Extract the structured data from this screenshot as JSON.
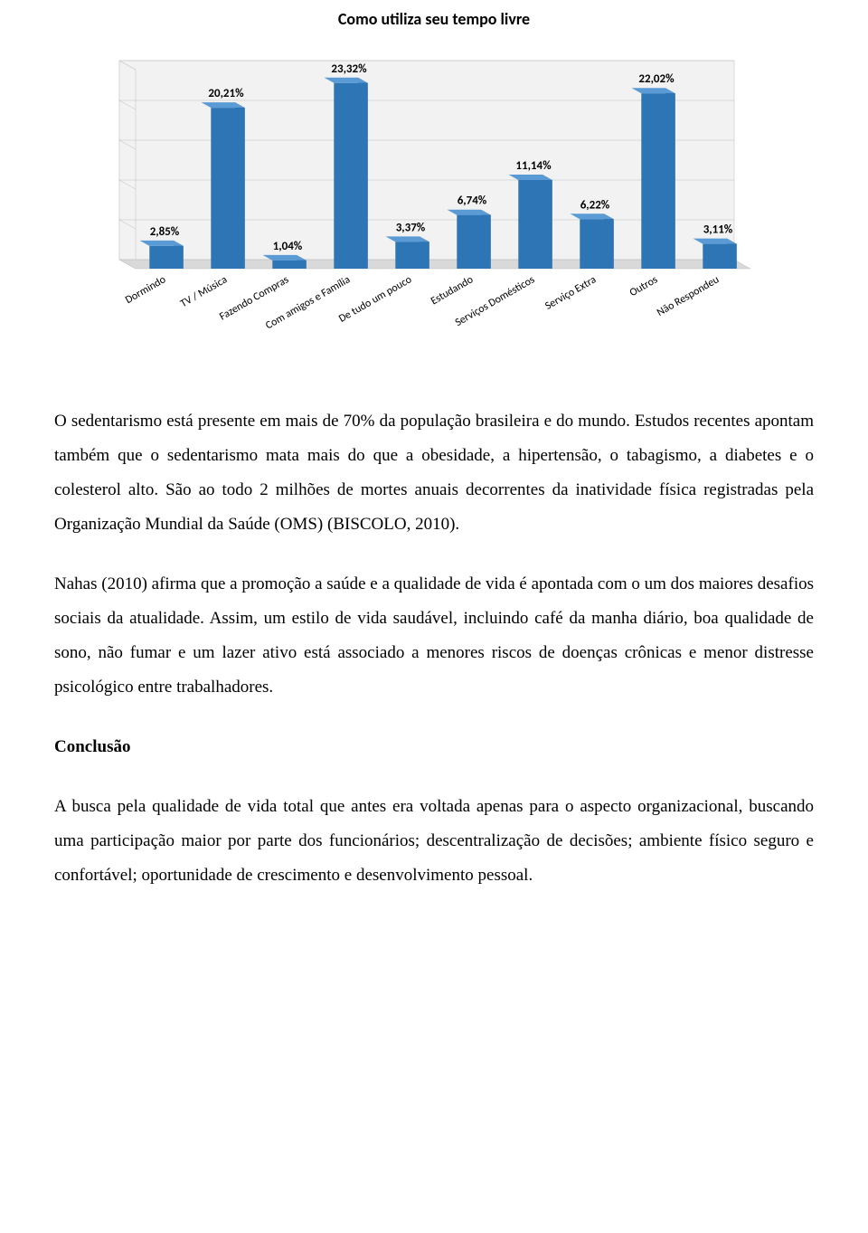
{
  "chart": {
    "type": "bar-3d",
    "title": "Como utiliza seu tempo livre",
    "title_fontsize": 18,
    "title_color": "#000000",
    "categories": [
      "Dormindo",
      "TV / Música",
      "Fazendo Compras",
      "Com amigos e Família",
      "De tudo um pouco",
      "Estudando",
      "Serviços Domésticos",
      "Serviço Extra",
      "Outros",
      "Não Respondeu"
    ],
    "values": [
      2.85,
      20.21,
      1.04,
      23.32,
      3.37,
      6.74,
      11.14,
      6.22,
      22.02,
      3.11
    ],
    "value_labels": [
      "2,85%",
      "20,21%",
      "1,04%",
      "23,32%",
      "3,37%",
      "6,74%",
      "11,14%",
      "6,22%",
      "22,02%",
      "3,11%"
    ],
    "bar_color_front": "#2e75b6",
    "bar_color_top": "#5b9bd5",
    "bar_color_side": "#1f4e79",
    "floor_color": "#d9d9d9",
    "wall_color": "#f2f2f2",
    "grid_color": "#bfbfbf",
    "value_label_fontsize": 13,
    "value_label_color": "#000000",
    "category_label_fontsize": 12,
    "category_label_color": "#000000",
    "category_label_rotation": -30,
    "ylim": [
      0,
      25
    ],
    "bar_width_ratio": 0.55,
    "depth_offset_x": 18,
    "depth_offset_y": 10
  },
  "paragraphs": {
    "p1": "O sedentarismo está presente em mais de 70% da população brasileira e do mundo. Estudos recentes apontam também que o sedentarismo mata mais do que a obesidade, a hipertensão, o tabagismo, a diabetes e o colesterol alto. São ao todo 2 milhões de mortes anuais decorrentes da inatividade física registradas pela Organização Mundial da Saúde (OMS) (BISCOLO, 2010).",
    "p2": "Nahas (2010) afirma que a promoção a saúde e a qualidade de vida é apontada com o um dos maiores desafios sociais da atualidade. Assim, um estilo de vida saudável, incluindo café da manha diário, boa qualidade de sono, não fumar e um lazer ativo está associado a menores riscos de doenças crônicas e menor distresse psicológico entre trabalhadores.",
    "heading": "Conclusão",
    "p3": "A busca pela qualidade de vida total que antes era voltada apenas para o aspecto organizacional, buscando uma participação maior por parte dos funcionários; descentralização de decisões; ambiente físico seguro e confortável; oportunidade de crescimento e desenvolvimento pessoal."
  }
}
